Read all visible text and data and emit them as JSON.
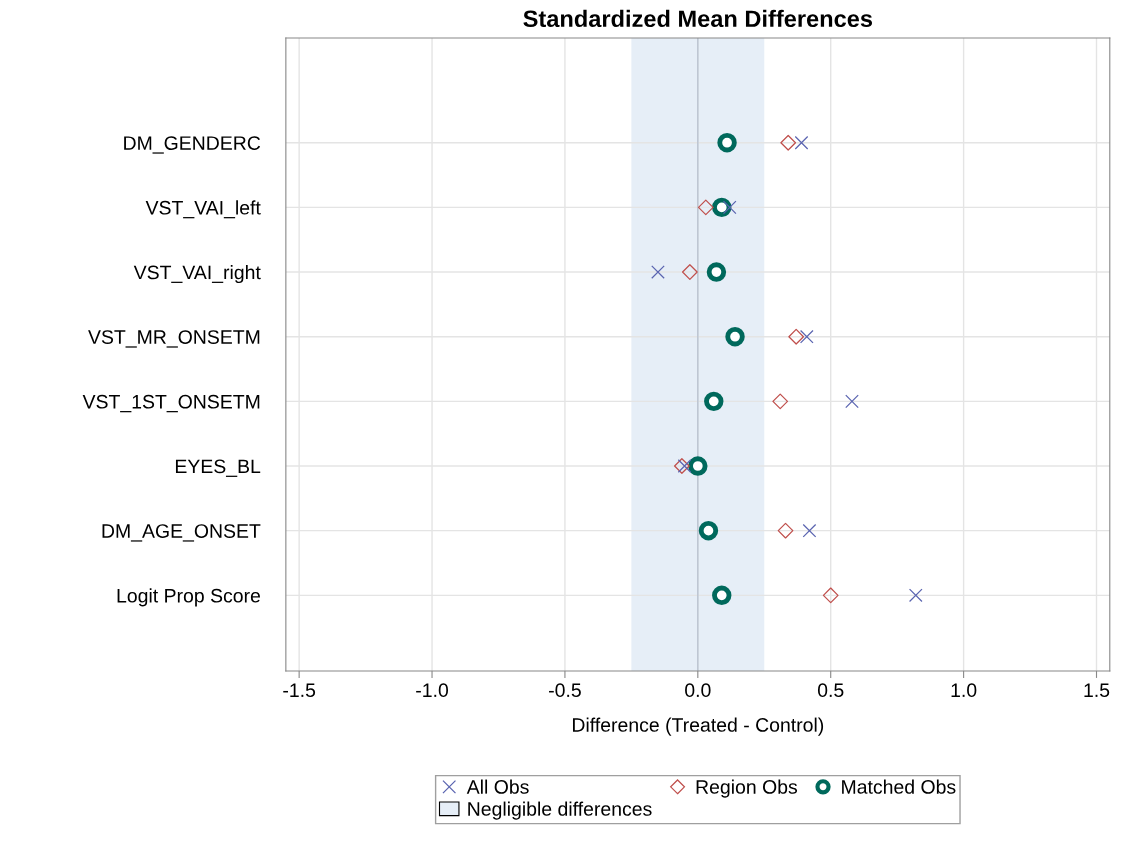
{
  "chart_data": {
    "type": "scatter",
    "orientation": "horizontal",
    "title": "Standardized Mean Differences",
    "xlabel": "Difference (Treated - Control)",
    "categories": [
      "DM_GENDERC",
      "VST_VAI_left",
      "VST_VAI_right",
      "VST_MR_ONSETM",
      "VST_1ST_ONSETM",
      "EYES_BL",
      "DM_AGE_ONSET",
      "Logit Prop Score"
    ],
    "series": [
      {
        "name": "All Obs",
        "color": "#5a64b0",
        "marker": "cross",
        "values": [
          0.39,
          0.12,
          -0.15,
          0.41,
          0.58,
          -0.05,
          0.42,
          0.82
        ]
      },
      {
        "name": "Region Obs",
        "color": "#c0504d",
        "marker": "diamond",
        "values": [
          0.34,
          0.03,
          -0.03,
          0.37,
          0.31,
          -0.06,
          0.33,
          0.5
        ]
      },
      {
        "name": "Matched Obs",
        "color": "#00695c",
        "marker": "circle",
        "values": [
          0.11,
          0.09,
          0.07,
          0.14,
          0.06,
          0.0,
          0.04,
          0.09
        ]
      }
    ],
    "xlim": [
      -1.55,
      1.55
    ],
    "xticks": [
      {
        "value": -1.5,
        "label": "-1.5"
      },
      {
        "value": -1.0,
        "label": "-1.0"
      },
      {
        "value": -0.5,
        "label": "-0.5"
      },
      {
        "value": 0.0,
        "label": "0.0"
      },
      {
        "value": 0.5,
        "label": "0.5"
      },
      {
        "value": 1.0,
        "label": "1.0"
      },
      {
        "value": 1.5,
        "label": "1.5"
      }
    ],
    "bands": [
      {
        "axis": "x",
        "from": -0.25,
        "to": 0.25,
        "label": "Negligible differences",
        "color": "#e6eef7"
      }
    ],
    "ref_lines": [
      {
        "axis": "x",
        "value": 0,
        "color": "#b8c2d0"
      }
    ],
    "grid": true,
    "legend": "bottom"
  }
}
